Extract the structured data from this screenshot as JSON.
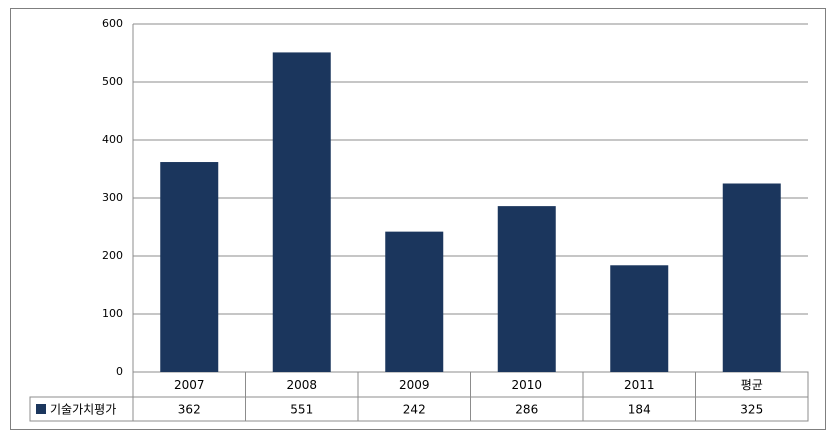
{
  "chart_data": {
    "type": "bar",
    "categories": [
      "2007",
      "2008",
      "2009",
      "2010",
      "2011",
      "평균"
    ],
    "series": [
      {
        "name": "기술가치평가",
        "color": "#1b365d",
        "values": [
          362,
          551,
          242,
          286,
          184,
          325
        ]
      }
    ],
    "ylim": [
      0,
      600
    ],
    "yticks": [
      0,
      100,
      200,
      300,
      400,
      500,
      600
    ],
    "grid": true
  }
}
